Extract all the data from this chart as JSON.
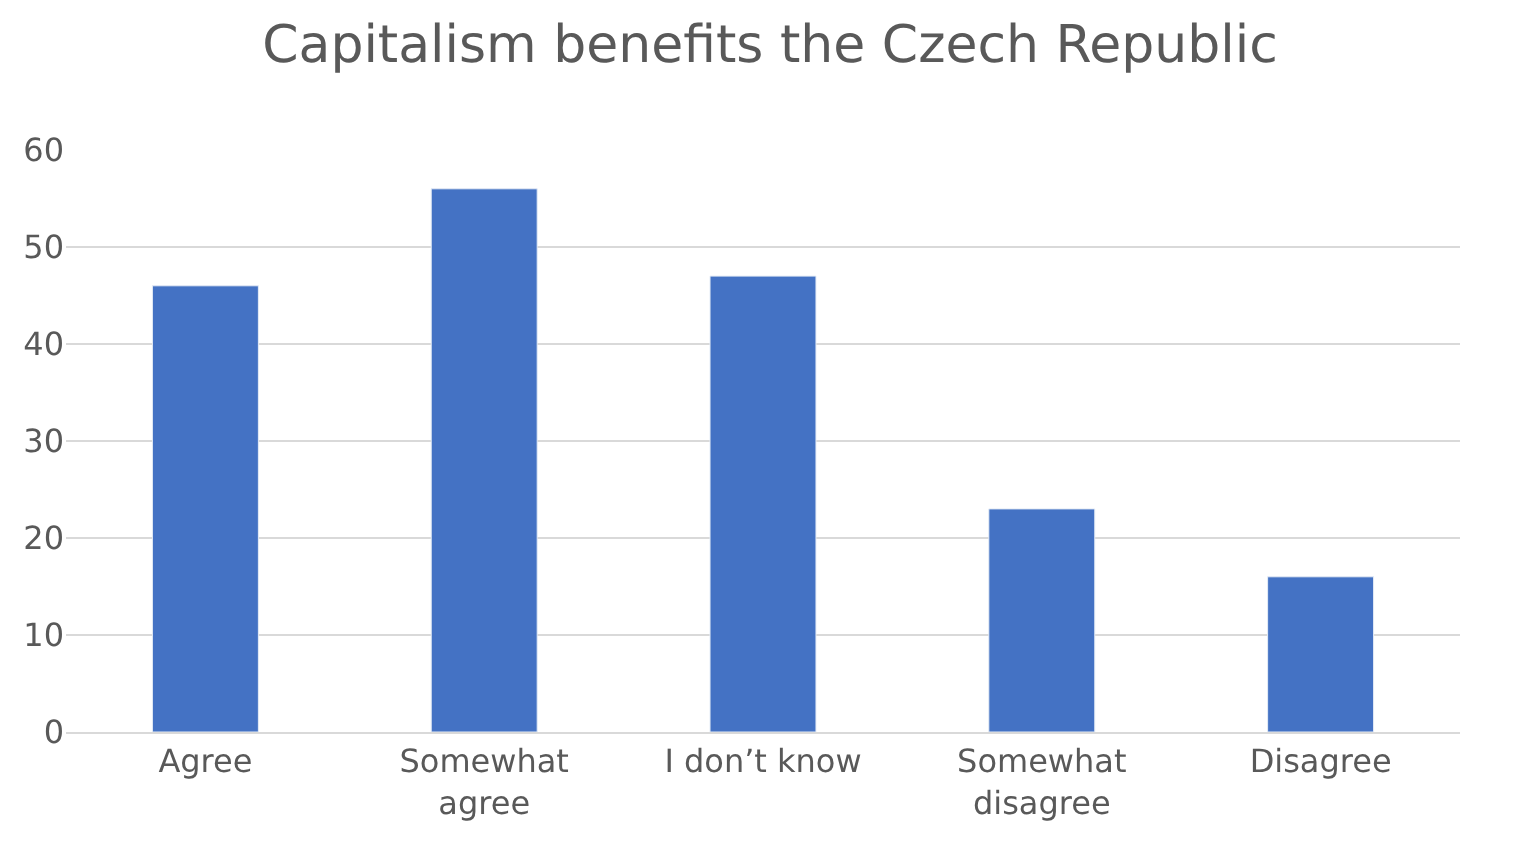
{
  "chart_data": {
    "type": "bar",
    "title": "Capitalism benefits the Czech Republic",
    "categories": [
      "Agree",
      "Somewhat agree",
      "I don’t know",
      "Somewhat disagree",
      "Disagree"
    ],
    "values": [
      46,
      56,
      47,
      23,
      16
    ],
    "color": "#4472c4",
    "ylim": [
      0,
      60
    ],
    "yticks": [
      0,
      10,
      20,
      30,
      40,
      50,
      60
    ],
    "grid": "y",
    "legend": false
  }
}
